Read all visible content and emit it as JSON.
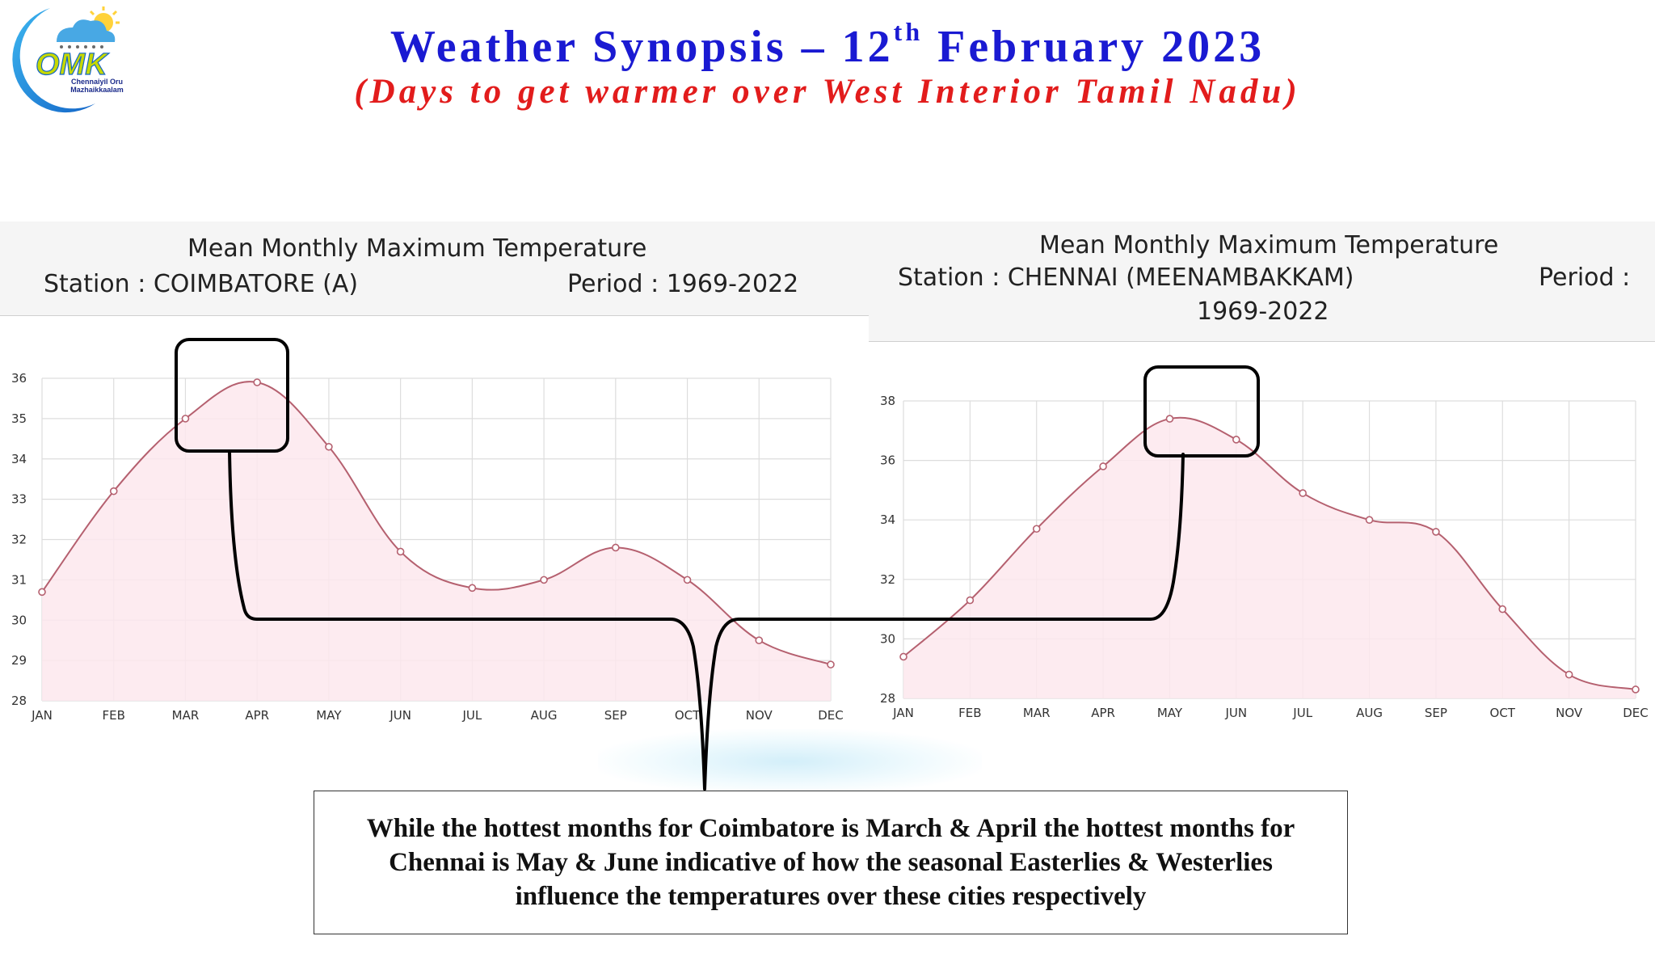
{
  "header": {
    "title_main": "Weather Synopsis – 12",
    "title_sup": "th",
    "title_end": " February 2023",
    "subtitle": "(Days to get warmer over West Interior Tamil Nadu)"
  },
  "logo": {
    "icon": "cloud-sun-rain-crescent-logo",
    "text": "OMK",
    "subtext": "Chennaiyil Oru Mazhaikkaalam"
  },
  "colors": {
    "title": "#1a1ad2",
    "subtitle": "#e21c1c",
    "series_line": "#b5606f",
    "series_fill": "#fde8ed",
    "annotation": "#000000"
  },
  "panels": {
    "left": {
      "title": "Mean Monthly Maximum Temperature",
      "station": "Station : COIMBATORE (A)",
      "period": "Period : 1969-2022"
    },
    "right": {
      "title": "Mean Monthly Maximum Temperature",
      "station": "Station : CHENNAI (MEENAMBAKKAM)",
      "period_label": "Period :",
      "period_value": "1969-2022"
    }
  },
  "chart_data": [
    {
      "type": "area",
      "title": "Mean Monthly Maximum Temperature",
      "station": "COIMBATORE (A)",
      "period": "1969-2022",
      "categories": [
        "JAN",
        "FEB",
        "MAR",
        "APR",
        "MAY",
        "JUN",
        "JUL",
        "AUG",
        "SEP",
        "OCT",
        "NOV",
        "DEC"
      ],
      "values": [
        30.7,
        33.2,
        35.0,
        35.9,
        34.3,
        31.7,
        30.8,
        31.0,
        31.8,
        31.0,
        29.5,
        28.9
      ],
      "ylim": [
        28,
        36
      ],
      "yticks": [
        28,
        29,
        30,
        31,
        32,
        33,
        34,
        35,
        36
      ],
      "grid": true,
      "highlight": [
        "MAR",
        "APR"
      ]
    },
    {
      "type": "area",
      "title": "Mean Monthly Maximum Temperature",
      "station": "CHENNAI (MEENAMBAKKAM)",
      "period": "1969-2022",
      "categories": [
        "JAN",
        "FEB",
        "MAR",
        "APR",
        "MAY",
        "JUN",
        "JUL",
        "AUG",
        "SEP",
        "OCT",
        "NOV",
        "DEC"
      ],
      "values": [
        29.4,
        31.3,
        33.7,
        35.8,
        37.4,
        36.7,
        34.9,
        34.0,
        33.6,
        31.0,
        28.8,
        28.3
      ],
      "ylim": [
        28,
        38
      ],
      "yticks": [
        28,
        30,
        32,
        34,
        36,
        38
      ],
      "grid": true,
      "highlight": [
        "MAY",
        "JUN"
      ]
    }
  ],
  "caption": "While the hottest months for Coimbatore is March & April the hottest months for Chennai is May & June indicative of how the seasonal Easterlies & Westerlies influence the temperatures over these cities respectively"
}
